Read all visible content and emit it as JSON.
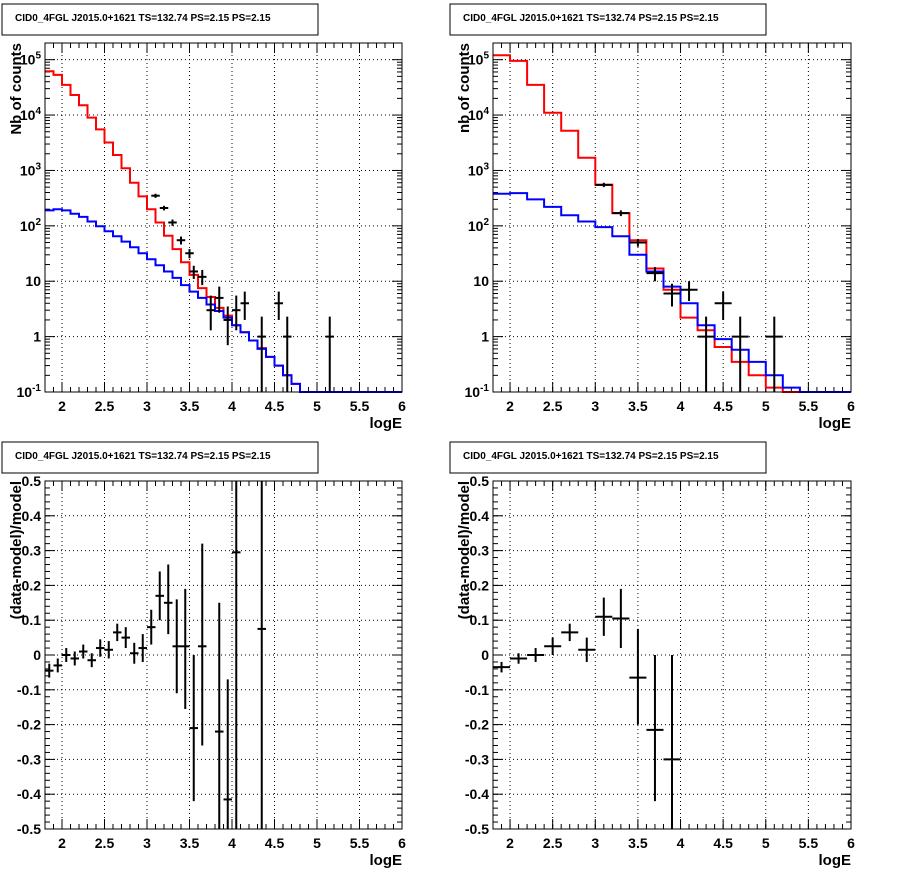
{
  "chart_data": [
    {
      "type": "line",
      "title": "CID0_4FGL J2015.0+1621 TS=132.74 PS=2.15 PS=2.15",
      "xlabel": "logE",
      "ylabel": "Nb of counts",
      "xlim": [
        1.8,
        6
      ],
      "ylim": [
        0.1,
        200000
      ],
      "yscale": "log",
      "grid": true,
      "x_ticks": [
        "2",
        "2.5",
        "3",
        "3.5",
        "4",
        "4.5",
        "5",
        "5.5",
        "6"
      ],
      "y_ticks": [
        "10^-1",
        "1",
        "10",
        "10^2",
        "10^3",
        "10^4",
        "10^5"
      ],
      "bin_edges": [
        1.8,
        1.9,
        2.0,
        2.1,
        2.2,
        2.3,
        2.4,
        2.5,
        2.6,
        2.7,
        2.8,
        2.9,
        3.0,
        3.1,
        3.2,
        3.3,
        3.4,
        3.5,
        3.6,
        3.7,
        3.8,
        3.9,
        4.0,
        4.1,
        4.2,
        4.3,
        4.4,
        4.5,
        4.6,
        4.7,
        4.8,
        4.9,
        5.0,
        5.1,
        5.2,
        5.3,
        5.4,
        5.5,
        5.6,
        5.7,
        5.8,
        5.9,
        6.0
      ],
      "series": [
        {
          "name": "",
          "color": "#ff0000",
          "style": "step",
          "values": [
            62000,
            53000,
            35000,
            23000,
            15000,
            9000,
            5500,
            3200,
            1900,
            1100,
            600,
            340,
            200,
            115,
            66,
            38,
            22,
            13,
            7.5,
            5.2,
            3.3,
            2.4,
            1.6,
            1.2,
            0.85,
            0.62,
            0.43,
            0.3,
            0.2,
            0.14,
            0.1,
            0.1,
            0.1,
            0.1,
            0.1,
            0.1,
            0.1,
            0.1,
            0.1,
            0.1,
            0.1,
            0.1
          ]
        },
        {
          "name": "",
          "color": "#0000ff",
          "style": "step",
          "values": [
            190,
            200,
            190,
            165,
            145,
            120,
            98,
            80,
            65,
            52,
            41,
            32,
            25,
            19.5,
            15,
            11.5,
            8.5,
            6.5,
            5,
            3.8,
            2.9,
            2.2,
            1.6,
            1.2,
            0.85,
            0.6,
            0.43,
            0.3,
            0.2,
            0.14,
            0.1,
            0.1,
            0.1,
            0.1,
            0.1,
            0.1,
            0.1,
            0.1,
            0.1,
            0.1,
            0.1,
            0.1
          ]
        }
      ],
      "points": [
        {
          "x": 3.1,
          "y": 350,
          "xerr": 0.05,
          "ylo": 320,
          "yhi": 380
        },
        {
          "x": 3.2,
          "y": 210,
          "xerr": 0.05,
          "ylo": 190,
          "yhi": 230
        },
        {
          "x": 3.3,
          "y": 115,
          "xerr": 0.05,
          "ylo": 100,
          "yhi": 130
        },
        {
          "x": 3.4,
          "y": 55,
          "xerr": 0.05,
          "ylo": 46,
          "yhi": 64
        },
        {
          "x": 3.5,
          "y": 32,
          "xerr": 0.05,
          "ylo": 26,
          "yhi": 38
        },
        {
          "x": 3.55,
          "y": 15,
          "xerr": 0.05,
          "ylo": 11,
          "yhi": 19
        },
        {
          "x": 3.65,
          "y": 12,
          "xerr": 0.05,
          "ylo": 8.5,
          "yhi": 16
        },
        {
          "x": 3.75,
          "y": 3,
          "xerr": 0.05,
          "ylo": 1.3,
          "yhi": 5.5
        },
        {
          "x": 3.85,
          "y": 5,
          "xerr": 0.05,
          "ylo": 2.7,
          "yhi": 8
        },
        {
          "x": 3.95,
          "y": 2,
          "xerr": 0.05,
          "ylo": 0.7,
          "yhi": 3.5
        },
        {
          "x": 4.05,
          "y": 3,
          "xerr": 0.05,
          "ylo": 1.3,
          "yhi": 5.5
        },
        {
          "x": 4.15,
          "y": 4,
          "xerr": 0.05,
          "ylo": 2,
          "yhi": 6.5
        },
        {
          "x": 4.35,
          "y": 1,
          "xerr": 0.05,
          "ylo": 0.1,
          "yhi": 2.3
        },
        {
          "x": 4.55,
          "y": 4,
          "xerr": 0.05,
          "ylo": 2,
          "yhi": 6.5
        },
        {
          "x": 4.65,
          "y": 1,
          "xerr": 0.05,
          "ylo": 0.1,
          "yhi": 2.3
        },
        {
          "x": 5.15,
          "y": 1,
          "xerr": 0.05,
          "ylo": 0.1,
          "yhi": 2.3
        }
      ]
    },
    {
      "type": "line",
      "title": "CID0_4FGL J2015.0+1621 TS=132.74 PS=2.15 PS=2.15",
      "xlabel": "logE",
      "ylabel": "nb of counts",
      "xlim": [
        1.8,
        6
      ],
      "ylim": [
        0.1,
        200000
      ],
      "yscale": "log",
      "grid": true,
      "x_ticks": [
        "2",
        "2.5",
        "3",
        "3.5",
        "4",
        "4.5",
        "5",
        "5.5",
        "6"
      ],
      "y_ticks": [
        "10^-1",
        "1",
        "10",
        "10^2",
        "10^3",
        "10^4",
        "10^5"
      ],
      "bin_edges": [
        1.8,
        2.0,
        2.2,
        2.4,
        2.6,
        2.8,
        3.0,
        3.2,
        3.4,
        3.6,
        3.8,
        4.0,
        4.2,
        4.4,
        4.6,
        4.8,
        5.0,
        5.2,
        5.4,
        5.6,
        5.8,
        6.0
      ],
      "series": [
        {
          "name": "",
          "color": "#ff0000",
          "style": "step",
          "values": [
            120000,
            95000,
            35000,
            11000,
            5200,
            1700,
            550,
            170,
            55,
            17,
            7,
            2.2,
            1.3,
            0.65,
            0.35,
            0.2,
            0.12,
            0.1,
            0.1,
            0.1,
            0.1
          ]
        },
        {
          "name": "",
          "color": "#0000ff",
          "style": "step",
          "values": [
            380,
            390,
            300,
            220,
            155,
            120,
            95,
            65,
            30,
            15,
            8,
            4,
            1.6,
            0.9,
            0.58,
            0.35,
            0.2,
            0.12,
            0.1,
            0.1,
            0.1
          ]
        }
      ],
      "points": [
        {
          "x": 3.1,
          "y": 550,
          "xerr": 0.1,
          "ylo": 500,
          "yhi": 600
        },
        {
          "x": 3.3,
          "y": 170,
          "xerr": 0.1,
          "ylo": 150,
          "yhi": 190
        },
        {
          "x": 3.5,
          "y": 50,
          "xerr": 0.1,
          "ylo": 42,
          "yhi": 58
        },
        {
          "x": 3.7,
          "y": 14,
          "xerr": 0.1,
          "ylo": 10,
          "yhi": 18
        },
        {
          "x": 3.9,
          "y": 6,
          "xerr": 0.1,
          "ylo": 3.5,
          "yhi": 9
        },
        {
          "x": 4.1,
          "y": 7,
          "xerr": 0.1,
          "ylo": 4.4,
          "yhi": 10
        },
        {
          "x": 4.3,
          "y": 1,
          "xerr": 0.1,
          "ylo": 0.1,
          "yhi": 2.3
        },
        {
          "x": 4.5,
          "y": 4,
          "xerr": 0.1,
          "ylo": 2,
          "yhi": 6.5
        },
        {
          "x": 4.7,
          "y": 1,
          "xerr": 0.1,
          "ylo": 0.1,
          "yhi": 2.3
        },
        {
          "x": 5.1,
          "y": 1,
          "xerr": 0.1,
          "ylo": 0.1,
          "yhi": 2.3
        }
      ]
    },
    {
      "type": "scatter",
      "title": "CID0_4FGL J2015.0+1621 TS=132.74 PS=2.15 PS=2.15",
      "xlabel": "logE",
      "ylabel": "(data-model)/model",
      "xlim": [
        1.8,
        6
      ],
      "ylim": [
        -0.5,
        0.5
      ],
      "yscale": "linear",
      "grid": true,
      "x_ticks": [
        "2",
        "2.5",
        "3",
        "3.5",
        "4",
        "4.5",
        "5",
        "5.5",
        "6"
      ],
      "y_ticks": [
        "-0.5",
        "-0.4",
        "-0.3",
        "-0.2",
        "-0.1",
        "0",
        "0.1",
        "0.2",
        "0.3",
        "0.4",
        "0.5"
      ],
      "points": [
        {
          "x": 1.85,
          "y": -0.045,
          "xerr": 0.05,
          "ylo": -0.065,
          "yhi": -0.025
        },
        {
          "x": 1.95,
          "y": -0.03,
          "xerr": 0.05,
          "ylo": -0.05,
          "yhi": -0.01
        },
        {
          "x": 2.05,
          "y": 0.0,
          "xerr": 0.05,
          "ylo": -0.02,
          "yhi": 0.02
        },
        {
          "x": 2.15,
          "y": -0.01,
          "xerr": 0.05,
          "ylo": -0.03,
          "yhi": 0.01
        },
        {
          "x": 2.25,
          "y": 0.01,
          "xerr": 0.05,
          "ylo": -0.01,
          "yhi": 0.03
        },
        {
          "x": 2.35,
          "y": -0.015,
          "xerr": 0.05,
          "ylo": -0.035,
          "yhi": 0.005
        },
        {
          "x": 2.45,
          "y": 0.02,
          "xerr": 0.05,
          "ylo": -0.005,
          "yhi": 0.045
        },
        {
          "x": 2.55,
          "y": 0.015,
          "xerr": 0.05,
          "ylo": -0.01,
          "yhi": 0.04
        },
        {
          "x": 2.65,
          "y": 0.065,
          "xerr": 0.05,
          "ylo": 0.04,
          "yhi": 0.09
        },
        {
          "x": 2.75,
          "y": 0.05,
          "xerr": 0.05,
          "ylo": 0.02,
          "yhi": 0.08
        },
        {
          "x": 2.85,
          "y": 0.005,
          "xerr": 0.05,
          "ylo": -0.025,
          "yhi": 0.035
        },
        {
          "x": 2.95,
          "y": 0.02,
          "xerr": 0.05,
          "ylo": -0.02,
          "yhi": 0.06
        },
        {
          "x": 3.05,
          "y": 0.08,
          "xerr": 0.05,
          "ylo": 0.03,
          "yhi": 0.13
        },
        {
          "x": 3.15,
          "y": 0.17,
          "xerr": 0.05,
          "ylo": 0.1,
          "yhi": 0.24
        },
        {
          "x": 3.25,
          "y": 0.15,
          "xerr": 0.05,
          "ylo": 0.06,
          "yhi": 0.26
        },
        {
          "x": 3.35,
          "y": 0.025,
          "xerr": 0.05,
          "ylo": -0.11,
          "yhi": 0.16
        },
        {
          "x": 3.45,
          "y": 0.025,
          "xerr": 0.05,
          "ylo": -0.155,
          "yhi": 0.19
        },
        {
          "x": 3.55,
          "y": -0.21,
          "xerr": 0.05,
          "ylo": -0.42,
          "yhi": 0.0
        },
        {
          "x": 3.65,
          "y": 0.025,
          "xerr": 0.05,
          "ylo": -0.26,
          "yhi": 0.32
        },
        {
          "x": 3.85,
          "y": -0.22,
          "xerr": 0.05,
          "ylo": -0.5,
          "yhi": 0.15
        },
        {
          "x": 3.95,
          "y": -0.415,
          "xerr": 0.05,
          "ylo": -0.5,
          "yhi": -0.07
        },
        {
          "x": 4.05,
          "y": 0.295,
          "xerr": 0.05,
          "ylo": -0.5,
          "yhi": 0.5
        },
        {
          "x": 4.35,
          "y": 0.075,
          "xerr": 0.05,
          "ylo": -0.5,
          "yhi": 0.5
        }
      ]
    },
    {
      "type": "scatter",
      "title": "CID0_4FGL J2015.0+1621 TS=132.74 PS=2.15 PS=2.15",
      "xlabel": "logE",
      "ylabel": "(data-model)/model",
      "xlim": [
        1.8,
        6
      ],
      "ylim": [
        -0.5,
        0.5
      ],
      "yscale": "linear",
      "grid": true,
      "x_ticks": [
        "2",
        "2.5",
        "3",
        "3.5",
        "4",
        "4.5",
        "5",
        "5.5",
        "6"
      ],
      "y_ticks": [
        "-0.5",
        "-0.4",
        "-0.3",
        "-0.2",
        "-0.1",
        "0",
        "0.1",
        "0.2",
        "0.3",
        "0.4",
        "0.5"
      ],
      "points": [
        {
          "x": 1.9,
          "y": -0.035,
          "xerr": 0.1,
          "ylo": -0.05,
          "yhi": -0.02
        },
        {
          "x": 2.1,
          "y": -0.01,
          "xerr": 0.1,
          "ylo": -0.025,
          "yhi": 0.005
        },
        {
          "x": 2.3,
          "y": 0.0,
          "xerr": 0.1,
          "ylo": -0.02,
          "yhi": 0.02
        },
        {
          "x": 2.5,
          "y": 0.025,
          "xerr": 0.1,
          "ylo": 0.0,
          "yhi": 0.05
        },
        {
          "x": 2.7,
          "y": 0.065,
          "xerr": 0.1,
          "ylo": 0.04,
          "yhi": 0.09
        },
        {
          "x": 2.9,
          "y": 0.015,
          "xerr": 0.1,
          "ylo": -0.02,
          "yhi": 0.05
        },
        {
          "x": 3.1,
          "y": 0.11,
          "xerr": 0.1,
          "ylo": 0.055,
          "yhi": 0.165
        },
        {
          "x": 3.3,
          "y": 0.105,
          "xerr": 0.1,
          "ylo": 0.02,
          "yhi": 0.19
        },
        {
          "x": 3.5,
          "y": -0.065,
          "xerr": 0.1,
          "ylo": -0.2,
          "yhi": 0.075
        },
        {
          "x": 3.7,
          "y": -0.215,
          "xerr": 0.1,
          "ylo": -0.42,
          "yhi": 0.0
        },
        {
          "x": 3.9,
          "y": -0.3,
          "xerr": 0.1,
          "ylo": -0.5,
          "yhi": 0.0
        }
      ]
    }
  ]
}
